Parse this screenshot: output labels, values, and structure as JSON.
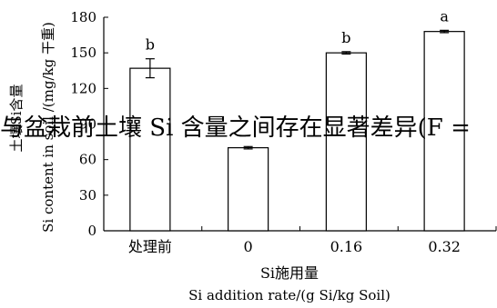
{
  "caption_fragment": "与盆栽前土壤 Si 含量之间存在显著差异(F =",
  "chart_data": {
    "type": "bar",
    "categories": [
      "处理前",
      "0",
      "0.16",
      "0.32"
    ],
    "values": [
      137,
      70,
      150,
      168
    ],
    "error": [
      8,
      1,
      1,
      1
    ],
    "significance": [
      "b",
      "",
      "b",
      "a"
    ],
    "xlabel": "Si施用量",
    "xlabel_en": "Si addition rate/(g Si/kg Soil)",
    "ylabel": "土壤Si含量",
    "ylabel_en": "Si content in soil /(mg/kg 干重)",
    "ylim": [
      0,
      180
    ],
    "yticks": [
      0,
      30,
      60,
      90,
      120,
      150,
      180
    ],
    "grid": false,
    "bar_color": "#ffffff",
    "edge_color": "#000000"
  }
}
